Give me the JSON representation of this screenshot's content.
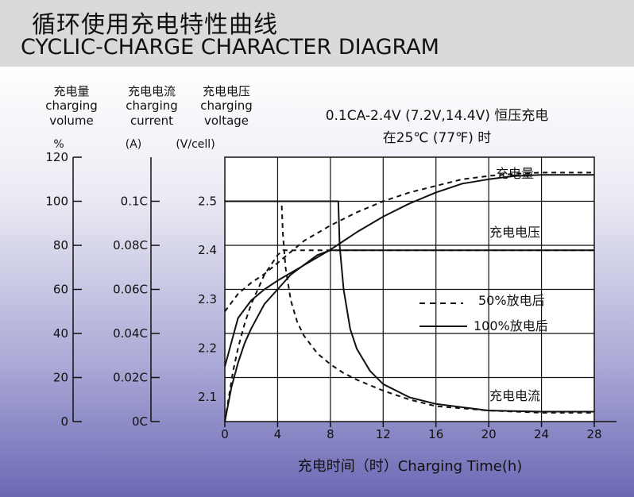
{
  "header": {
    "title_cn": "循环使用充电特性曲线",
    "title_en": "CYCLIC-CHARGE CHARACTER DIAGRAM"
  },
  "axes": {
    "volume": {
      "label_cn": "充电量",
      "label_en1": "charging",
      "label_en2": "volume",
      "unit": "%",
      "ticks": [
        "0",
        "20",
        "40",
        "60",
        "80",
        "100",
        "120"
      ]
    },
    "current": {
      "label_cn": "充电电流",
      "label_en1": "charging",
      "label_en2": "current",
      "unit": "(A)",
      "ticks": [
        "0C",
        "0.02C",
        "0.04C",
        "0.06C",
        "0.08C",
        "0.1C"
      ]
    },
    "voltage": {
      "label_cn": "充电电压",
      "label_en1": "charging",
      "label_en2": "voltage",
      "unit": "(V/cell)",
      "ticks": [
        "2.1",
        "2.2",
        "2.3",
        "2.4",
        "2.5"
      ]
    }
  },
  "chart_data": {
    "type": "line",
    "title": "0.1CA-2.4V (7.2V,14.4V) 恒压充电",
    "subtitle": "在25℃ (77℉) 时",
    "xlabel": "充电时间（时）Charging Time(h)",
    "x_ticks": [
      0,
      4,
      8,
      12,
      16,
      20,
      24,
      28
    ],
    "xlim": [
      0,
      28
    ],
    "grid": true,
    "volume_lim": [
      0,
      120
    ],
    "current_lim_C": [
      0,
      0.1
    ],
    "voltage_lim": [
      2.05,
      2.5
    ],
    "series_labels": {
      "volume": "充电量",
      "voltage": "充电电压",
      "current": "充电电流"
    },
    "legend": [
      {
        "style": "dashed",
        "label": "50%放电后"
      },
      {
        "style": "solid",
        "label": "100%放电后"
      }
    ],
    "series": [
      {
        "group": "volume",
        "style": "solid",
        "x": [
          0,
          1,
          2,
          3,
          4,
          6,
          8,
          10,
          12,
          14,
          16,
          18,
          20,
          22,
          24,
          26,
          28
        ],
        "y": [
          25,
          47,
          55,
          60,
          64,
          71,
          78,
          86,
          93,
          99,
          104,
          108,
          110,
          111.5,
          112,
          112,
          112
        ]
      },
      {
        "group": "volume",
        "style": "dashed",
        "x": [
          0,
          1,
          2,
          3,
          4,
          6,
          8,
          10,
          12,
          14,
          16,
          18,
          20,
          22,
          24,
          26,
          28
        ],
        "y": [
          50,
          58,
          63,
          67,
          72,
          82,
          89,
          95,
          100,
          104,
          107,
          110,
          111.5,
          112.5,
          113,
          113,
          113
        ]
      },
      {
        "group": "voltage",
        "style": "solid",
        "x": [
          0,
          0.5,
          1,
          1.5,
          2,
          3,
          4,
          5,
          6,
          7,
          8,
          8.6,
          28
        ],
        "y": [
          2.05,
          2.12,
          2.17,
          2.21,
          2.24,
          2.29,
          2.32,
          2.35,
          2.37,
          2.39,
          2.4,
          2.4,
          2.4
        ]
      },
      {
        "group": "voltage",
        "style": "dashed",
        "x": [
          0,
          0.3,
          0.6,
          1,
          1.5,
          2,
          2.5,
          3,
          3.5,
          4,
          4.4,
          28
        ],
        "y": [
          2.05,
          2.1,
          2.15,
          2.2,
          2.25,
          2.29,
          2.32,
          2.35,
          2.37,
          2.39,
          2.4,
          2.4
        ]
      },
      {
        "group": "current",
        "style": "solid",
        "x": [
          0,
          8.6,
          8.7,
          9,
          9.5,
          10,
          11,
          12,
          14,
          16,
          20,
          24,
          28
        ],
        "y": [
          0.1,
          0.1,
          0.08,
          0.06,
          0.042,
          0.033,
          0.023,
          0.017,
          0.011,
          0.008,
          0.005,
          0.0045,
          0.0045
        ]
      },
      {
        "group": "current",
        "style": "dashed",
        "x": [
          0,
          4.3,
          4.4,
          4.6,
          5,
          5.5,
          6,
          7,
          8,
          9,
          10,
          12,
          14,
          16,
          20,
          24,
          28
        ],
        "y": [
          0.1,
          0.1,
          0.085,
          0.07,
          0.055,
          0.045,
          0.039,
          0.031,
          0.026,
          0.022,
          0.019,
          0.014,
          0.01,
          0.007,
          0.005,
          0.004,
          0.004
        ]
      }
    ]
  }
}
